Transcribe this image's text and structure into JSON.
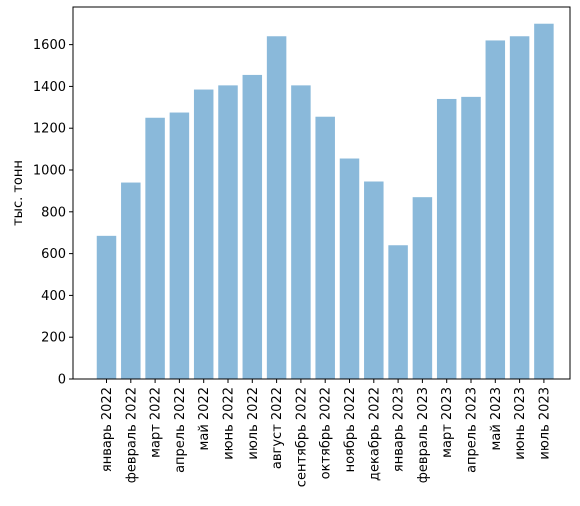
{
  "chart_data": {
    "type": "bar",
    "categories": [
      "январь 2022",
      "февраль 2022",
      "март 2022",
      "апрель 2022",
      "май 2022",
      "июнь 2022",
      "июль 2022",
      "август 2022",
      "сентябрь 2022",
      "октябрь 2022",
      "ноябрь 2022",
      "декабрь 2022",
      "январь 2023",
      "февраль 2023",
      "март 2023",
      "апрель 2023",
      "май 2023",
      "июнь 2023",
      "июль 2023"
    ],
    "values": [
      685,
      940,
      1250,
      1275,
      1385,
      1405,
      1455,
      1640,
      1405,
      1255,
      1055,
      945,
      640,
      870,
      1340,
      1350,
      1620,
      1640,
      1700
    ],
    "title": "",
    "xlabel": "",
    "ylabel": "тыс. тонн",
    "ylim": [
      0,
      1780
    ],
    "yticks": [
      0,
      200,
      400,
      600,
      800,
      1000,
      1200,
      1400,
      1600
    ],
    "bar_color": "#8ab9da",
    "grid": false
  }
}
